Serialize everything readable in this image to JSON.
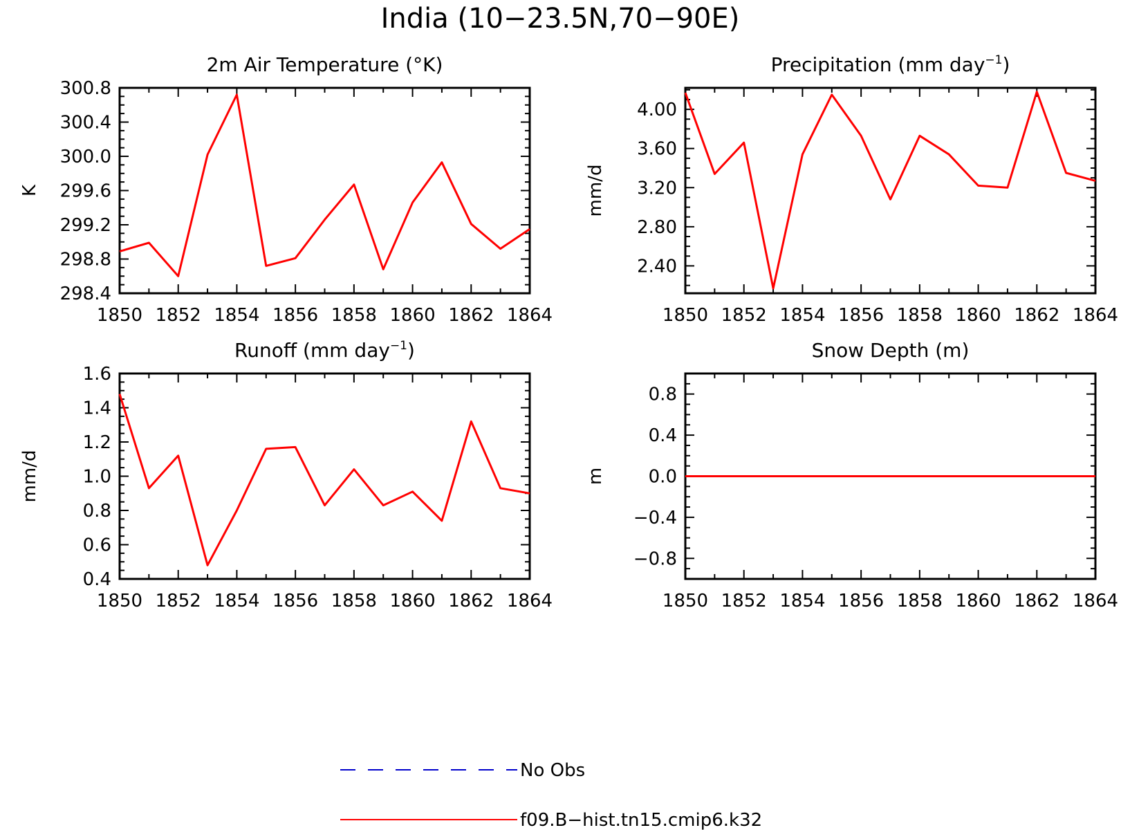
{
  "figure": {
    "title": "India (10−23.5N,70−90E)"
  },
  "colors": {
    "model_line": "#ff0000",
    "obs_line": "#0000cc",
    "axis": "#000000"
  },
  "chart_data": [
    {
      "type": "line",
      "title": "2m Air Temperature (°K)",
      "ylabel": "K",
      "xlabel": "",
      "xlim": [
        1850,
        1864
      ],
      "ylim": [
        298.4,
        300.8
      ],
      "xticks": [
        1850,
        1852,
        1854,
        1856,
        1858,
        1860,
        1862,
        1864
      ],
      "yticks": [
        "298.4",
        "298.8",
        "299.2",
        "299.6",
        "300.0",
        "300.4",
        "300.8"
      ],
      "series": [
        {
          "name": "f09.B−hist.tn15.cmip6.k32",
          "x": [
            1850,
            1851,
            1852,
            1853,
            1854,
            1855,
            1856,
            1857,
            1858,
            1859,
            1860,
            1861,
            1862,
            1863,
            1864
          ],
          "values": [
            298.89,
            298.99,
            298.6,
            300.02,
            300.72,
            298.72,
            298.81,
            299.26,
            299.67,
            298.68,
            299.46,
            299.93,
            299.21,
            298.92,
            299.15
          ]
        }
      ]
    },
    {
      "type": "line",
      "title": "Precipitation (mm day",
      "title_sup": "−1",
      "title_suffix": ")",
      "ylabel": "mm/d",
      "xlabel": "",
      "xlim": [
        1850,
        1864
      ],
      "ylim": [
        2.12,
        4.22
      ],
      "xticks": [
        1850,
        1852,
        1854,
        1856,
        1858,
        1860,
        1862,
        1864
      ],
      "yticks": [
        "2.40",
        "2.80",
        "3.20",
        "3.60",
        "4.00"
      ],
      "series": [
        {
          "name": "f09.B−hist.tn15.cmip6.k32",
          "x": [
            1850,
            1851,
            1852,
            1853,
            1854,
            1855,
            1856,
            1857,
            1858,
            1859,
            1860,
            1861,
            1862,
            1863,
            1864
          ],
          "values": [
            4.17,
            3.34,
            3.66,
            2.17,
            3.54,
            4.15,
            3.73,
            3.08,
            3.73,
            3.54,
            3.22,
            3.2,
            4.18,
            3.35,
            3.27
          ]
        }
      ]
    },
    {
      "type": "line",
      "title": "Runoff (mm day",
      "title_sup": "−1",
      "title_suffix": ")",
      "ylabel": "mm/d",
      "xlabel": "",
      "xlim": [
        1850,
        1864
      ],
      "ylim": [
        0.4,
        1.6
      ],
      "xticks": [
        1850,
        1852,
        1854,
        1856,
        1858,
        1860,
        1862,
        1864
      ],
      "yticks": [
        "0.4",
        "0.6",
        "0.8",
        "1.0",
        "1.2",
        "1.4",
        "1.6"
      ],
      "series": [
        {
          "name": "f09.B−hist.tn15.cmip6.k32",
          "x": [
            1850,
            1851,
            1852,
            1853,
            1854,
            1855,
            1856,
            1857,
            1858,
            1859,
            1860,
            1861,
            1862,
            1863,
            1864
          ],
          "values": [
            1.48,
            0.93,
            1.12,
            0.48,
            0.8,
            1.16,
            1.17,
            0.83,
            1.04,
            0.83,
            0.91,
            0.74,
            1.32,
            0.93,
            0.9
          ]
        }
      ]
    },
    {
      "type": "line",
      "title": "Snow Depth (m)",
      "ylabel": "m",
      "xlabel": "",
      "xlim": [
        1850,
        1864
      ],
      "ylim": [
        -1.0,
        1.0
      ],
      "xticks": [
        1850,
        1852,
        1854,
        1856,
        1858,
        1860,
        1862,
        1864
      ],
      "yticks": [
        "−0.8",
        "−0.4",
        "0.0",
        "0.4",
        "0.8"
      ],
      "series": [
        {
          "name": "f09.B−hist.tn15.cmip6.k32",
          "x": [
            1850,
            1851,
            1852,
            1853,
            1854,
            1855,
            1856,
            1857,
            1858,
            1859,
            1860,
            1861,
            1862,
            1863,
            1864
          ],
          "values": [
            0,
            0,
            0,
            0,
            0,
            0,
            0,
            0,
            0,
            0,
            0,
            0,
            0,
            0,
            0
          ]
        }
      ]
    }
  ],
  "legend": {
    "placement": "bottom-center",
    "items": [
      {
        "label": "No Obs",
        "style": "dashed",
        "color": "#0000cc"
      },
      {
        "label": "f09.B−hist.tn15.cmip6.k32",
        "style": "solid",
        "color": "#ff0000"
      }
    ]
  }
}
